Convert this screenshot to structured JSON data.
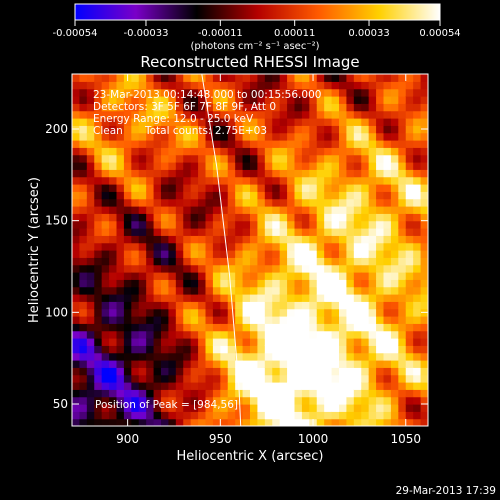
{
  "chart_data": {
    "type": "heatmap",
    "title": "Reconstructed RHESSI Image",
    "xlabel": "Heliocentric X (arcsec)",
    "ylabel": "Heliocentric Y (arcsec)",
    "xlim": [
      870,
      1062
    ],
    "ylim": [
      38,
      230
    ],
    "x_ticks": [
      900,
      950,
      1000,
      1050
    ],
    "y_ticks": [
      50,
      100,
      150,
      200
    ],
    "colorbar": {
      "range": [
        -0.00054,
        0.00054
      ],
      "tick_values": [
        -0.00054,
        -0.00033,
        -0.00011,
        0.00011,
        0.00033,
        0.00054
      ],
      "tick_labels": [
        "-0.00054",
        "-0.00033",
        "-0.00011",
        "0.00011",
        "0.00033",
        "0.00054"
      ],
      "unit_label": "(photons cm⁻² s⁻¹ asec⁻²)",
      "colors": [
        "#0000ff",
        "#7a00c8",
        "#000000",
        "#b40000",
        "#ff5a00",
        "#ffd000",
        "#ffffff"
      ]
    },
    "annotations": {
      "time_range": "23-Mar-2013 00:14:48.000 to 00:15:56.000",
      "detectors": "Detectors: 3F 5F 6F 7F 8F 9F, Att 0",
      "energy": "Energy Range: 12.0 - 25.0 keV",
      "method": "Clean",
      "total_counts": "Total counts: 2.75E+03",
      "peak": "Position of Peak = [984,56]"
    },
    "peak_position": [
      984,
      56
    ],
    "limb": {
      "points": [
        [
          940,
          230
        ],
        [
          948,
          180
        ],
        [
          955,
          120
        ],
        [
          960,
          60
        ],
        [
          961,
          38
        ]
      ]
    },
    "emission_regions": [
      {
        "x": 1000,
        "y": 90,
        "sigma": 55,
        "amplitude": 0.00045
      },
      {
        "x": 985,
        "y": 60,
        "sigma": 25,
        "amplitude": 0.0003
      },
      {
        "x": 1035,
        "y": 170,
        "sigma": 35,
        "amplitude": 0.00022
      },
      {
        "x": 900,
        "y": 205,
        "sigma": 30,
        "amplitude": 0.00025
      },
      {
        "x": 895,
        "y": 65,
        "sigma": 35,
        "amplitude": -0.00035
      },
      {
        "x": 930,
        "y": 150,
        "sigma": 25,
        "amplitude": -0.00012
      }
    ]
  },
  "footer": {
    "timestamp": "29-Mar-2013 17:39"
  }
}
